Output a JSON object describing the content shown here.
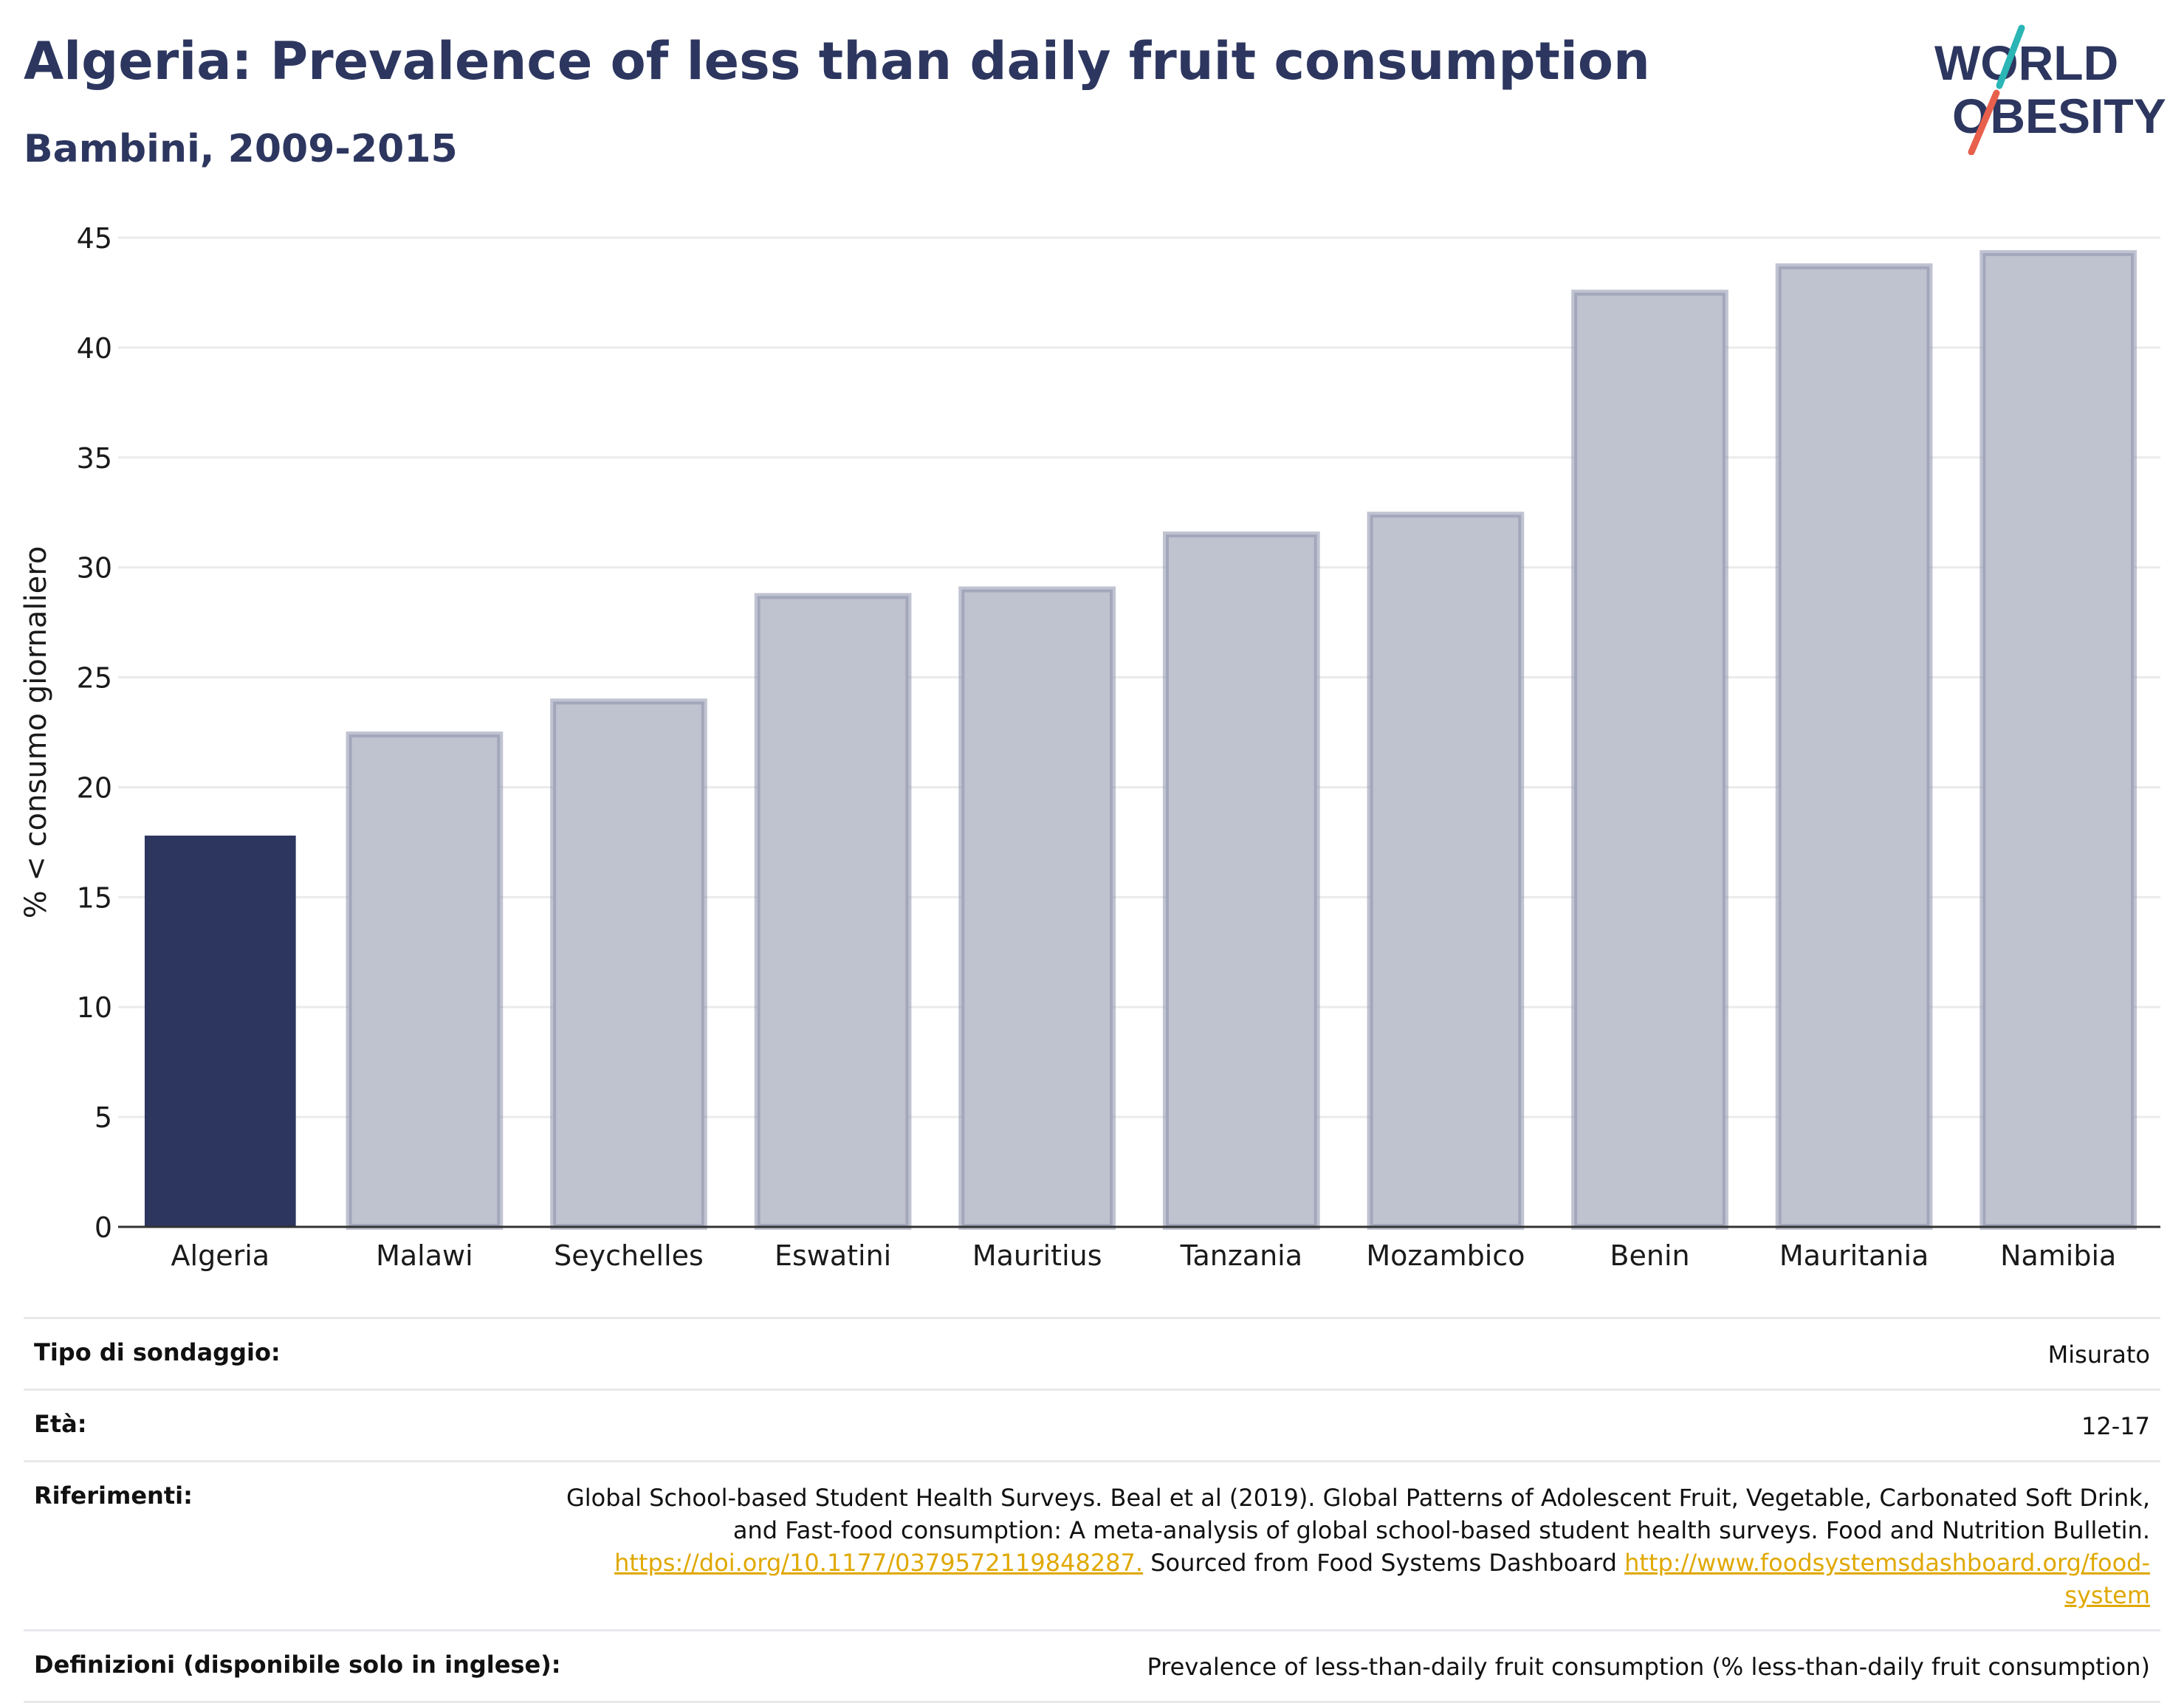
{
  "header": {
    "title": "Algeria: Prevalence of less than daily fruit consumption",
    "subtitle": "Bambini, 2009-2015"
  },
  "logo": {
    "line1": "WORLD",
    "line2": "OBESITY",
    "colors": {
      "text": "#2c365f",
      "slash_top": "#2bb5b5",
      "slash_bottom": "#e8604c"
    }
  },
  "colors": {
    "highlight_bar": "#2c365f",
    "other_bar_fill": "#bfc2cf",
    "other_bar_stroke": "#8c92ab",
    "grid": "#ebebeb",
    "axis_text": "#1a1a1a",
    "link": "#e0a800"
  },
  "chart_data": {
    "type": "bar",
    "title": "Algeria: Prevalence of less than daily fruit consumption",
    "subtitle": "Bambini, 2009-2015",
    "xlabel": "",
    "ylabel": "% < consumo giornaliero",
    "categories": [
      "Algeria",
      "Malawi",
      "Seychelles",
      "Eswatini",
      "Mauritius",
      "Tanzania",
      "Mozambico",
      "Benin",
      "Mauritania",
      "Namibia"
    ],
    "values": [
      17.8,
      22.4,
      23.9,
      28.7,
      29.0,
      31.5,
      32.4,
      42.5,
      43.7,
      44.3
    ],
    "highlight": "Algeria",
    "ylim": [
      0,
      45
    ],
    "yticks": [
      0,
      5,
      10,
      15,
      20,
      25,
      30,
      35,
      40,
      45
    ],
    "grid": true,
    "legend": "none"
  },
  "info": {
    "rows": [
      {
        "label": "Tipo di sondaggio:",
        "value": "Misurato"
      },
      {
        "label": "Età:",
        "value": "12-17"
      },
      {
        "label": "Riferimenti:",
        "value_text_1": "Global School-based Student Health Surveys. Beal et al (2019). Global Patterns of Adolescent Fruit, Vegetable, Carbonated Soft Drink, and Fast-food consumption: A meta-analysis of global school-based student health surveys. Food and Nutrition Bulletin.",
        "link_1": "https://doi.org/10.1177/0379572119848287.",
        "value_text_2": "Sourced from Food Systems Dashboard",
        "link_2": "http://www.foodsystemsdashboard.org/food-system"
      },
      {
        "label": "Definizioni (disponibile solo in inglese):",
        "value": "Prevalence of less-than-daily fruit consumption (% less-than-daily fruit consumption)"
      }
    ]
  }
}
